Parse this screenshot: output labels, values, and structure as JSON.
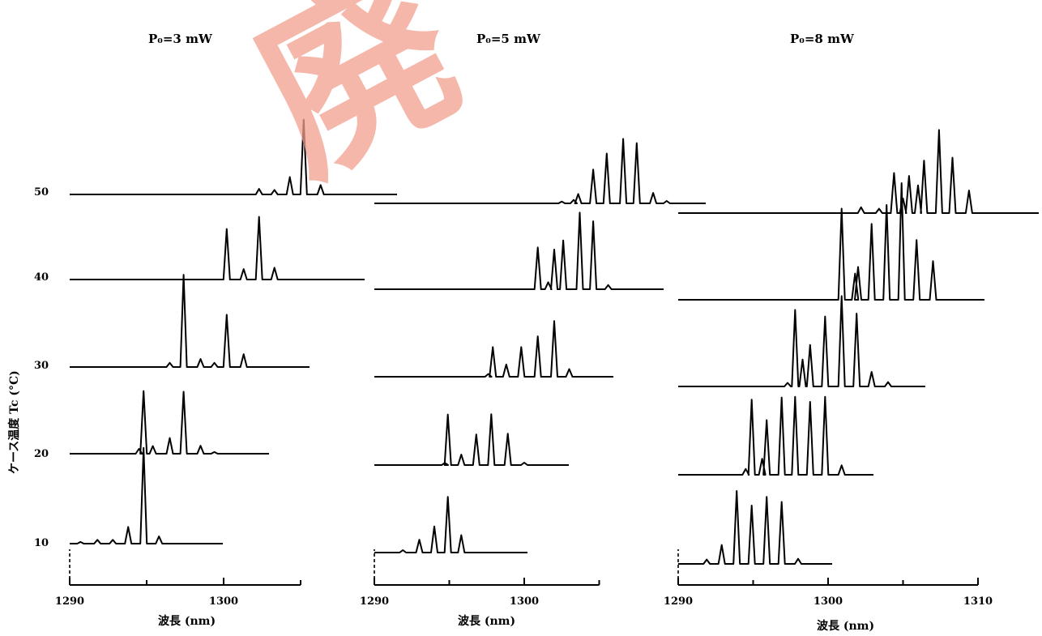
{
  "chart_data": [
    {
      "type": "line",
      "title": "P₀=3 mW",
      "xlabel": "波長 (nm)",
      "ylabel": "ケース温度 Tc (°C)",
      "x_ticks": [
        1290,
        1300
      ],
      "y_ticks": [
        10,
        20,
        30,
        40,
        50
      ],
      "series": [
        {
          "name": "10",
          "peaks": [
            [
              1290.7,
              0.05
            ],
            [
              1291.8,
              0.11
            ],
            [
              1292.8,
              0.11
            ],
            [
              1293.8,
              0.48
            ],
            [
              1294.8,
              2.75
            ],
            [
              1295.8,
              0.21
            ]
          ]
        },
        {
          "name": "20",
          "peaks": [
            [
              1294.5,
              0.14
            ],
            [
              1294.8,
              1.8
            ],
            [
              1295.4,
              0.22
            ],
            [
              1296.5,
              0.45
            ],
            [
              1297.4,
              1.78
            ],
            [
              1298.5,
              0.23
            ],
            [
              1299.4,
              0.05
            ]
          ]
        },
        {
          "name": "30",
          "peaks": [
            [
              1296.5,
              0.12
            ],
            [
              1297.4,
              2.65
            ],
            [
              1298.5,
              0.23
            ],
            [
              1299.4,
              0.12
            ],
            [
              1300.2,
              1.5
            ],
            [
              1301.3,
              0.37
            ]
          ]
        },
        {
          "name": "40",
          "peaks": [
            [
              1300.2,
              1.45
            ],
            [
              1301.3,
              0.3
            ],
            [
              1302.3,
              1.8
            ],
            [
              1303.3,
              0.34
            ]
          ]
        },
        {
          "name": "50",
          "peaks": [
            [
              1302.3,
              0.16
            ],
            [
              1303.3,
              0.13
            ],
            [
              1304.3,
              0.5
            ],
            [
              1305.2,
              2.15
            ],
            [
              1306.3,
              0.27
            ]
          ]
        }
      ]
    },
    {
      "type": "line",
      "title": "P₀=5 mW",
      "xlabel": "波長 (nm)",
      "ylabel": "",
      "x_ticks": [
        1290,
        1300
      ],
      "y_ticks": [],
      "series": [
        {
          "name": "10",
          "peaks": [
            [
              1291.9,
              0.07
            ],
            [
              1293.0,
              0.37
            ],
            [
              1294.0,
              0.75
            ],
            [
              1294.9,
              1.6
            ],
            [
              1295.8,
              0.5
            ]
          ]
        },
        {
          "name": "20",
          "peaks": [
            [
              1294.7,
              0.06
            ],
            [
              1294.9,
              1.45
            ],
            [
              1295.8,
              0.3
            ],
            [
              1296.8,
              0.88
            ],
            [
              1297.8,
              1.46
            ],
            [
              1298.9,
              0.9
            ],
            [
              1300.0,
              0.07
            ]
          ]
        },
        {
          "name": "30",
          "peaks": [
            [
              1297.6,
              0.08
            ],
            [
              1297.9,
              0.85
            ],
            [
              1298.8,
              0.35
            ],
            [
              1299.8,
              0.85
            ],
            [
              1300.9,
              1.16
            ],
            [
              1302.0,
              1.6
            ],
            [
              1303.0,
              0.22
            ]
          ]
        },
        {
          "name": "40",
          "peaks": [
            [
              1300.9,
              1.2
            ],
            [
              1301.6,
              0.2
            ],
            [
              1302.0,
              1.14
            ],
            [
              1302.6,
              1.4
            ],
            [
              1303.7,
              2.2
            ],
            [
              1304.6,
              1.95
            ],
            [
              1305.6,
              0.12
            ]
          ]
        },
        {
          "name": "50",
          "peaks": [
            [
              1302.5,
              0.05
            ],
            [
              1303.3,
              0.1
            ],
            [
              1303.6,
              0.27
            ],
            [
              1304.6,
              0.97
            ],
            [
              1305.5,
              1.43
            ],
            [
              1306.6,
              1.85
            ],
            [
              1307.5,
              1.73
            ],
            [
              1308.6,
              0.3
            ],
            [
              1309.5,
              0.07
            ]
          ]
        }
      ]
    },
    {
      "type": "line",
      "title": "P₀=8 mW",
      "xlabel": "波長 (nm)",
      "ylabel": "",
      "x_ticks": [
        1290,
        1300,
        1310
      ],
      "y_ticks": [],
      "series": [
        {
          "name": "10",
          "peaks": [
            [
              1291.9,
              0.06
            ],
            [
              1292.9,
              0.26
            ],
            [
              1293.9,
              1.0
            ],
            [
              1294.9,
              0.8
            ],
            [
              1295.9,
              0.92
            ],
            [
              1296.9,
              0.85
            ],
            [
              1298.0,
              0.07
            ]
          ]
        },
        {
          "name": "20",
          "peaks": [
            [
              1294.5,
              0.08
            ],
            [
              1294.9,
              1.03
            ],
            [
              1295.6,
              0.22
            ],
            [
              1295.9,
              0.75
            ],
            [
              1296.9,
              1.06
            ],
            [
              1297.8,
              1.07
            ],
            [
              1298.8,
              1.0
            ],
            [
              1299.8,
              1.07
            ],
            [
              1300.9,
              0.13
            ]
          ]
        },
        {
          "name": "30",
          "peaks": [
            [
              1297.3,
              0.05
            ],
            [
              1297.8,
              1.05
            ],
            [
              1298.3,
              0.37
            ],
            [
              1298.8,
              0.57
            ],
            [
              1299.8,
              0.96
            ],
            [
              1300.9,
              1.24
            ],
            [
              1301.9,
              1.0
            ],
            [
              1302.9,
              0.2
            ],
            [
              1304.0,
              0.06
            ]
          ]
        },
        {
          "name": "40",
          "peaks": [
            [
              1300.9,
              1.25
            ],
            [
              1301.8,
              0.36
            ],
            [
              1302.0,
              0.45
            ],
            [
              1302.9,
              1.04
            ],
            [
              1303.9,
              1.3
            ],
            [
              1304.9,
              1.6
            ],
            [
              1305.9,
              0.82
            ],
            [
              1307.0,
              0.53
            ]
          ]
        },
        {
          "name": "50",
          "peaks": [
            [
              1302.2,
              0.08
            ],
            [
              1303.4,
              0.06
            ],
            [
              1304.4,
              0.55
            ],
            [
              1305.0,
              0.2
            ],
            [
              1305.4,
              0.51
            ],
            [
              1306.0,
              0.38
            ],
            [
              1306.4,
              0.72
            ],
            [
              1307.4,
              1.14
            ],
            [
              1308.3,
              0.76
            ],
            [
              1309.4,
              0.31
            ]
          ]
        }
      ]
    }
  ],
  "watermark": {
    "text": "廃",
    "color": "#f3a08f"
  }
}
